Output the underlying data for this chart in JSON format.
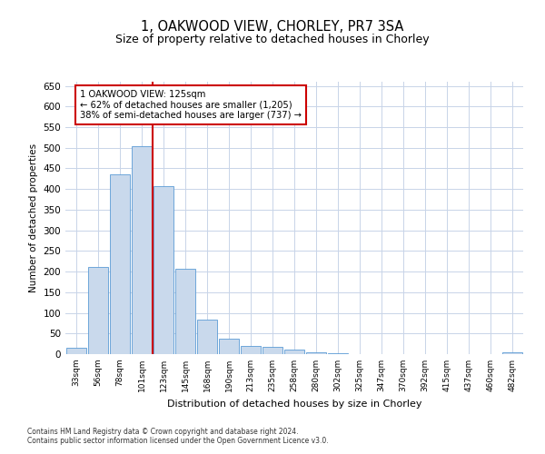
{
  "title": "1, OAKWOOD VIEW, CHORLEY, PR7 3SA",
  "subtitle": "Size of property relative to detached houses in Chorley",
  "xlabel": "Distribution of detached houses by size in Chorley",
  "ylabel": "Number of detached properties",
  "categories": [
    "33sqm",
    "56sqm",
    "78sqm",
    "101sqm",
    "123sqm",
    "145sqm",
    "168sqm",
    "190sqm",
    "213sqm",
    "235sqm",
    "258sqm",
    "280sqm",
    "302sqm",
    "325sqm",
    "347sqm",
    "370sqm",
    "392sqm",
    "415sqm",
    "437sqm",
    "460sqm",
    "482sqm"
  ],
  "values": [
    15,
    212,
    436,
    503,
    408,
    207,
    84,
    38,
    19,
    18,
    11,
    5,
    2,
    1,
    1,
    1,
    0,
    0,
    0,
    0,
    5
  ],
  "bar_color": "#c9d9ec",
  "bar_edge_color": "#5b9bd5",
  "vline_color": "#cc0000",
  "vline_position": 3.5,
  "annotation_text": "1 OAKWOOD VIEW: 125sqm\n← 62% of detached houses are smaller (1,205)\n38% of semi-detached houses are larger (737) →",
  "annotation_box_color": "#ffffff",
  "annotation_box_edge": "#cc0000",
  "ylim": [
    0,
    660
  ],
  "yticks": [
    0,
    50,
    100,
    150,
    200,
    250,
    300,
    350,
    400,
    450,
    500,
    550,
    600,
    650
  ],
  "footnote1": "Contains HM Land Registry data © Crown copyright and database right 2024.",
  "footnote2": "Contains public sector information licensed under the Open Government Licence v3.0.",
  "background_color": "#ffffff",
  "grid_color": "#c8d4e8",
  "title_fontsize": 10.5,
  "subtitle_fontsize": 9
}
